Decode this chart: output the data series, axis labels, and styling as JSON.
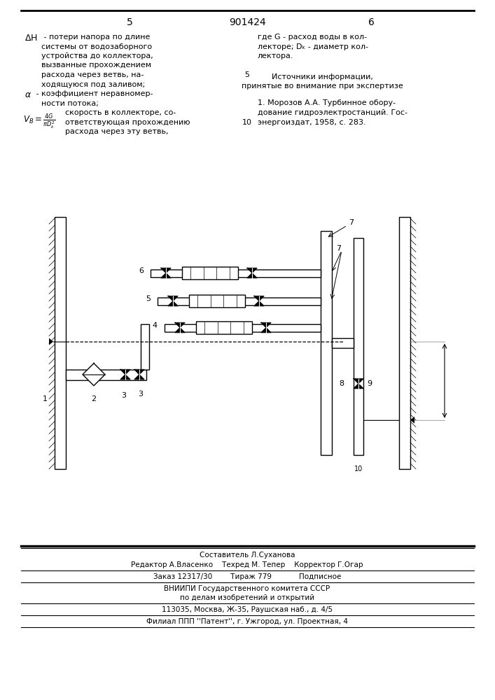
{
  "page_number_left": "5",
  "page_number_center": "901424",
  "page_number_right": "6",
  "bg_color": "#ffffff",
  "text_color": "#000000",
  "footer_line1": "Составитель Л.Суханова",
  "footer_line2": "Редактор А.Власенко    Техред М. Тепер    Корректор Г.Огар",
  "footer_line3": "Заказ 12317/30        Тираж 779            Подписное",
  "footer_line4": "ВНИИПИ Государственного комитета СССР",
  "footer_line5": "по делам изобретений и открытий",
  "footer_line6": "113035, Москва, Ж-35, Раушская наб., д. 4/5",
  "footer_line7": "Филиал ППП ''Патент'', г. Ужгород, ул. Проектная, 4",
  "left_col_lines": [
    [
      "ΔH",
      " - потери напора по длине"
    ],
    [
      "",
      "системы от водозаборного"
    ],
    [
      "",
      "устройства до коллектора,"
    ],
    [
      "",
      "вызванные прохождением"
    ],
    [
      "",
      "расхода через ветвь, на-"
    ],
    [
      "",
      "ходящуюся под заливом;"
    ],
    [
      "α",
      " - коэффициент неравномер-"
    ],
    [
      "",
      "ности потока;"
    ],
    [
      "VB",
      "скорость в коллекторе, со-"
    ],
    [
      "",
      "ответствующая прохождению"
    ],
    [
      "",
      "расхода через эту ветвь,"
    ]
  ],
  "right_col_line1": "где G - расход воды в кол-",
  "right_col_line2": "лекторе; Dₖ - диаметр кол-",
  "right_col_line3": "лектора.",
  "sources_header1": "Источники информации,",
  "sources_header2": "принятые во внимание при экспертизе",
  "source1_line1": "1. Морозов А.А. Турбинное обору-",
  "source1_line2": "дование гидроэлектростанций. Гос-",
  "source1_line3": "энергоиздат, 1958, с. 283."
}
